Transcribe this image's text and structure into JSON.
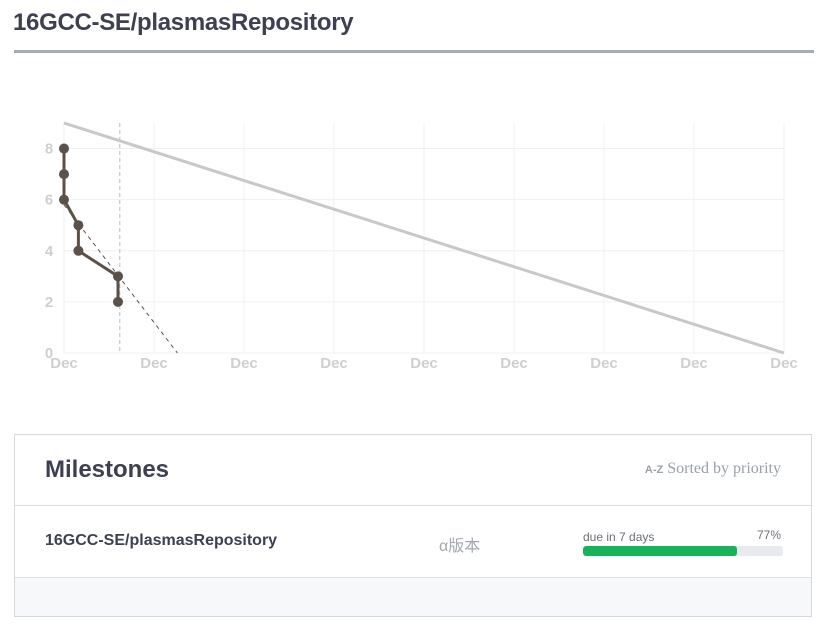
{
  "page": {
    "title": "16GCC-SE/plasmasRepository"
  },
  "chart_data": {
    "type": "line",
    "title": "",
    "xlabel": "",
    "ylabel": "",
    "ylim": [
      0,
      9
    ],
    "yticks": [
      0,
      2,
      4,
      6,
      8
    ],
    "xtick_labels": [
      "Dec",
      "Dec",
      "Dec",
      "Dec",
      "Dec",
      "Dec",
      "Dec",
      "Dec",
      "Dec"
    ],
    "xlim": [
      0,
      8
    ],
    "grid": true,
    "series": [
      {
        "role": "ideal",
        "color": "#c8c8c8",
        "points": [
          [
            0,
            9
          ],
          [
            8,
            0
          ]
        ]
      },
      {
        "role": "actual",
        "color": "#5b5149",
        "points": [
          [
            0,
            8
          ],
          [
            0,
            7
          ],
          [
            0,
            6
          ],
          [
            0.16,
            5
          ],
          [
            0.16,
            4
          ],
          [
            0.6,
            3
          ],
          [
            0.6,
            2
          ]
        ]
      },
      {
        "role": "trend",
        "color": "#5b5149",
        "dashed": true,
        "points": [
          [
            0,
            5.8
          ],
          [
            1.26,
            0
          ]
        ]
      }
    ],
    "markers": [
      {
        "role": "today",
        "x": 0.62,
        "color": "#bdbdbd"
      }
    ]
  },
  "milestones": {
    "title": "Milestones",
    "sort_icon": "A-Z",
    "sort_label": "Sorted by priority",
    "rows": [
      {
        "name": "16GCC-SE/plasmasRepository",
        "version": "α版本",
        "due": "due in 7 days",
        "percent_label": "77%",
        "progress": 0.77
      }
    ]
  }
}
